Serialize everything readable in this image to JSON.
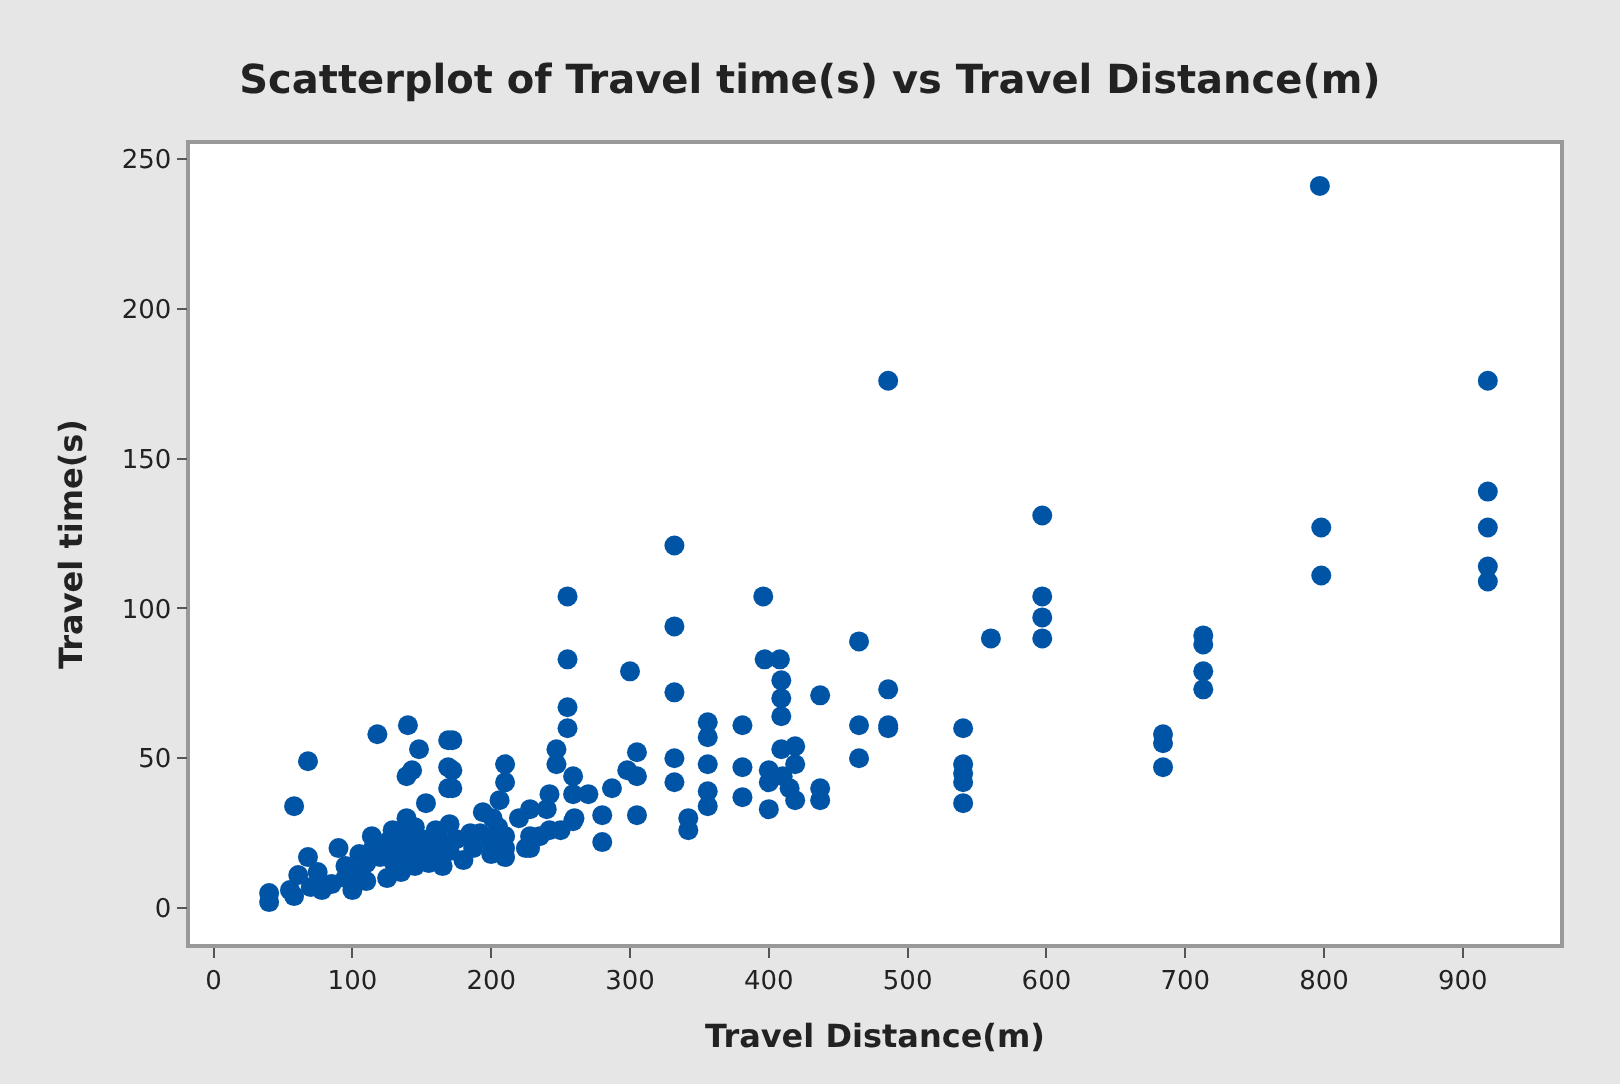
{
  "chart_data": {
    "type": "scatter",
    "title": "Scatterplot of Travel time(s) vs Travel Distance(m)",
    "xlabel": "Travel Distance(m)",
    "ylabel": "Travel time(s)",
    "xlim": [
      -17,
      970
    ],
    "ylim": [
      -12,
      255
    ],
    "xticks": [
      0,
      100,
      200,
      300,
      400,
      500,
      600,
      700,
      800,
      900
    ],
    "yticks": [
      0,
      50,
      100,
      150,
      200,
      250
    ],
    "marker": "circle",
    "series": [
      {
        "color": "#0054a6",
        "x": [
          797,
          486,
          597,
          597,
          597,
          597,
          560,
          798,
          798,
          918,
          918,
          918,
          918,
          918,
          713,
          713,
          713,
          713,
          684,
          684,
          684,
          540,
          540,
          540,
          540,
          540,
          486,
          486,
          486,
          465,
          465,
          465,
          332,
          332,
          332,
          332,
          332,
          255,
          255,
          255,
          255,
          247,
          247,
          259,
          259,
          259,
          242,
          300,
          305,
          305,
          298,
          305,
          287,
          280,
          280,
          342,
          342,
          356,
          356,
          356,
          356,
          356,
          381,
          381,
          381,
          396,
          397,
          408,
          409,
          409,
          409,
          409,
          419,
          400,
          400,
          400,
          410,
          419,
          419,
          415,
          437,
          437,
          437,
          172,
          172,
          172,
          210,
          210,
          206,
          201,
          194,
          192,
          210,
          210,
          228,
          228,
          228,
          242,
          187,
          68,
          58,
          118,
          140,
          148,
          143,
          139,
          169,
          169,
          169,
          153,
          139,
          68,
          61,
          40,
          78,
          90,
          114,
          129,
          40,
          55,
          58,
          70,
          75,
          85,
          95,
          95,
          100,
          105,
          105,
          110,
          110,
          115,
          120,
          125,
          125,
          130,
          130,
          135,
          135,
          140,
          140,
          145,
          145,
          150,
          150,
          155,
          155,
          160,
          160,
          165,
          165,
          170,
          170,
          175,
          180,
          185,
          200,
          200,
          205,
          210,
          220,
          225,
          235,
          240,
          250,
          260,
          270
        ],
        "values": [
          241,
          176,
          131,
          104,
          97,
          90,
          90,
          127,
          111,
          176,
          139,
          127,
          114,
          109,
          91,
          88,
          79,
          73,
          58,
          55,
          47,
          60,
          48,
          45,
          42,
          35,
          73,
          61,
          60,
          89,
          61,
          50,
          121,
          94,
          72,
          50,
          42,
          104,
          83,
          67,
          60,
          53,
          48,
          44,
          38,
          29,
          38,
          79,
          52,
          44,
          46,
          31,
          40,
          31,
          22,
          30,
          26,
          62,
          57,
          48,
          39,
          34,
          61,
          47,
          37,
          104,
          83,
          83,
          76,
          70,
          64,
          53,
          54,
          46,
          42,
          33,
          44,
          48,
          36,
          40,
          71,
          40,
          36,
          56,
          46,
          40,
          48,
          42,
          36,
          30,
          32,
          25,
          24,
          20,
          33,
          24,
          20,
          26,
          20,
          49,
          34,
          58,
          61,
          53,
          46,
          44,
          56,
          47,
          40,
          35,
          30,
          17,
          11,
          2,
          6,
          20,
          24,
          26,
          5,
          6,
          4,
          7,
          12,
          8,
          14,
          10,
          6,
          12,
          18,
          9,
          15,
          20,
          17,
          10,
          22,
          15,
          19,
          12,
          24,
          17,
          21,
          14,
          27,
          18,
          23,
          15,
          20,
          26,
          17,
          22,
          14,
          28,
          19,
          23,
          16,
          25,
          18,
          22,
          27,
          17,
          30,
          20,
          24,
          33,
          26,
          30,
          38
        ]
      }
    ]
  }
}
